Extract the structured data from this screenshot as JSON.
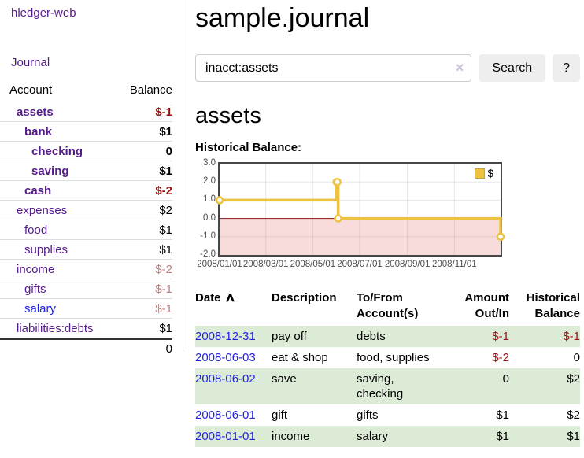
{
  "app": {
    "brand": "hledger-web"
  },
  "sidebar": {
    "journal_link": "Journal",
    "accounts": {
      "header_account": "Account",
      "header_balance": "Balance",
      "rows": [
        {
          "name": "assets",
          "balance": "$-1"
        },
        {
          "name": "bank",
          "balance": "$1"
        },
        {
          "name": "checking",
          "balance": "0"
        },
        {
          "name": "saving",
          "balance": "$1"
        },
        {
          "name": "cash",
          "balance": "$-2"
        },
        {
          "name": "expenses",
          "balance": "$2"
        },
        {
          "name": "food",
          "balance": "$1"
        },
        {
          "name": "supplies",
          "balance": "$1"
        },
        {
          "name": "income",
          "balance": "$-2"
        },
        {
          "name": "gifts",
          "balance": "$-1"
        },
        {
          "name": "salary",
          "balance": "$-1"
        },
        {
          "name": "liabilities:debts",
          "balance": "$1"
        }
      ],
      "total": "0"
    }
  },
  "main": {
    "title": "sample.journal",
    "search": {
      "value": "inacct:assets",
      "clear": "×",
      "submit": "Search",
      "help": "?"
    },
    "heading": "assets",
    "chart_label": "Historical Balance:",
    "register": {
      "headers": {
        "date": "Date",
        "sort_icon": "∧",
        "description": "Description",
        "accounts": "To/From\nAccount(s)",
        "amount": "Amount\nOut/In",
        "balance": "Historical\nBalance"
      },
      "rows": [
        {
          "date": "2008-12-31",
          "description": "pay off",
          "accounts": "debts",
          "amount": "$-1",
          "balance": "$-1"
        },
        {
          "date": "2008-06-03",
          "description": "eat & shop",
          "accounts": "food, supplies",
          "amount": "$-2",
          "balance": "0"
        },
        {
          "date": "2008-06-02",
          "description": "save",
          "accounts": "saving,\nchecking",
          "amount": "0",
          "balance": "$2"
        },
        {
          "date": "2008-06-01",
          "description": "gift",
          "accounts": "gifts",
          "amount": "$1",
          "balance": "$2"
        },
        {
          "date": "2008-01-01",
          "description": "income",
          "accounts": "salary",
          "amount": "$1",
          "balance": "$1"
        }
      ]
    }
  },
  "chart_data": {
    "type": "line",
    "title": "Historical Balance",
    "legend": "$",
    "step": true,
    "x": [
      "2008-01-01",
      "2008-06-01",
      "2008-06-02",
      "2008-06-03",
      "2008-12-31"
    ],
    "values": [
      1,
      2,
      2,
      0,
      -1
    ],
    "xlim": [
      "2008-01-01",
      "2008-12-31"
    ],
    "ylim": [
      -2,
      3
    ],
    "y_tick_labels": [
      "3.0",
      "2.0",
      "1.0",
      "0.0",
      "-1.0",
      "-2.0"
    ],
    "x_tick_labels": [
      "2008/01/01",
      "2008/03/01",
      "2008/05/01",
      "2008/07/01",
      "2008/09/01",
      "2008/11/01"
    ],
    "line_color": "#edc240",
    "negative_fill": "#f8dcdb",
    "zero_line_color": "#8b1717",
    "grid": true,
    "legend_position": "top-right"
  }
}
